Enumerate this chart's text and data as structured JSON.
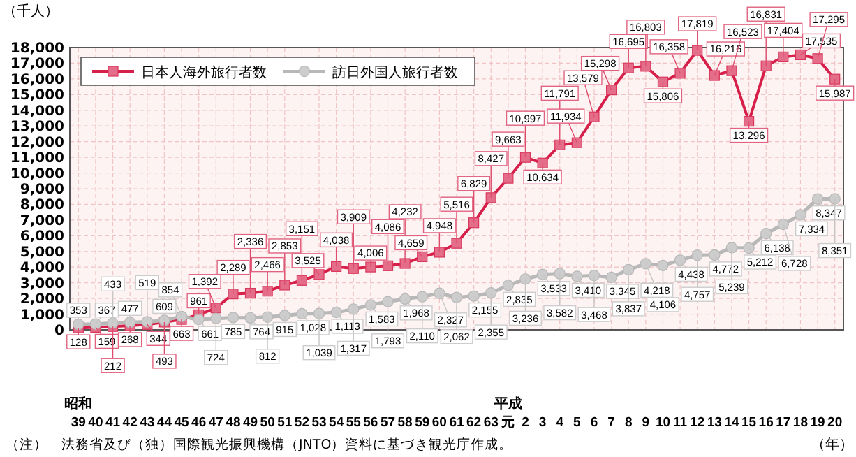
{
  "chart_data": {
    "type": "line",
    "ylabel": "（千人）",
    "xlabel": "（年）",
    "categories": [
      "39",
      "40",
      "41",
      "42",
      "43",
      "44",
      "45",
      "46",
      "47",
      "48",
      "49",
      "50",
      "51",
      "52",
      "53",
      "54",
      "55",
      "56",
      "57",
      "58",
      "59",
      "60",
      "61",
      "62",
      "63",
      "元",
      "2",
      "3",
      "4",
      "5",
      "6",
      "7",
      "8",
      "9",
      "10",
      "11",
      "12",
      "13",
      "14",
      "15",
      "16",
      "17",
      "18",
      "19",
      "20"
    ],
    "series": [
      {
        "name": "日本人海外旅行者数",
        "color": "#d6204a",
        "marker": "square",
        "values": [
          128,
          159,
          212,
          268,
          344,
          493,
          663,
          961,
          1392,
          2289,
          2336,
          2466,
          2853,
          3151,
          3525,
          4038,
          3909,
          4006,
          4086,
          4232,
          4659,
          4948,
          5516,
          6829,
          8427,
          9663,
          10997,
          10634,
          11791,
          11934,
          13579,
          15298,
          16695,
          16803,
          15806,
          16358,
          17819,
          16216,
          16523,
          13296,
          16831,
          17404,
          17535,
          17295,
          15987
        ],
        "value_labels": [
          "128",
          "159",
          "212",
          "268",
          "344",
          "493",
          "663",
          "961",
          "1,392",
          "2,289",
          "2,336",
          "2,466",
          "2,853",
          "3,151",
          "3,525",
          "4,038",
          "3,909",
          "4,006",
          "4,086",
          "4,232",
          "4,659",
          "4,948",
          "5,516",
          "6,829",
          "8,427",
          "9,663",
          "10,997",
          "10,634",
          "11,791",
          "11,934",
          "13,579",
          "15,298",
          "16,695",
          "16,803",
          "15,806",
          "16,358",
          "17,819",
          "16,216",
          "16,523",
          "13,296",
          "16,831",
          "17,404",
          "17,535",
          "17,295",
          "15,987"
        ]
      },
      {
        "name": "訪日外国人旅行者数",
        "color": "#b8b8b8",
        "marker": "circle",
        "values": [
          353,
          367,
          433,
          477,
          519,
          609,
          854,
          661,
          724,
          785,
          764,
          812,
          915,
          1028,
          1039,
          1113,
          1317,
          1583,
          1793,
          1968,
          2110,
          2327,
          2062,
          2155,
          2355,
          2835,
          3236,
          3533,
          3582,
          3410,
          3468,
          3345,
          3837,
          4218,
          4106,
          4438,
          4757,
          4772,
          5239,
          5212,
          6138,
          6728,
          7334,
          8347,
          8351
        ],
        "value_labels": [
          "353",
          "367",
          "433",
          "477",
          "519",
          "609",
          "854",
          "661",
          "724",
          "785",
          "764",
          "812",
          "915",
          "1,028",
          "1,039",
          "1,113",
          "1,317",
          "1,583",
          "1,793",
          "1,968",
          "2,110",
          "2,327",
          "2,062",
          "2,155",
          "2,355",
          "2,835",
          "3,236",
          "3,533",
          "3,582",
          "3,410",
          "3,468",
          "3,345",
          "3,837",
          "4,218",
          "4,106",
          "4,438",
          "4,757",
          "4,772",
          "5,239",
          "5,212",
          "6,138",
          "6,728",
          "7,334",
          "8,347",
          "8,351"
        ]
      }
    ],
    "ylim": [
      0,
      18000
    ],
    "yticks": [
      {
        "value": 0,
        "label": "0"
      },
      {
        "value": 1000,
        "label": "1,000"
      },
      {
        "value": 2000,
        "label": "2,000"
      },
      {
        "value": 3000,
        "label": "3,000"
      },
      {
        "value": 4000,
        "label": "4,000"
      },
      {
        "value": 5000,
        "label": "5,000"
      },
      {
        "value": 6000,
        "label": "6,000"
      },
      {
        "value": 7000,
        "label": "7,000"
      },
      {
        "value": 8000,
        "label": "8,000"
      },
      {
        "value": 9000,
        "label": "9,000"
      },
      {
        "value": 10000,
        "label": "10,000"
      },
      {
        "value": 11000,
        "label": "11,000"
      },
      {
        "value": 12000,
        "label": "12,000"
      },
      {
        "value": 13000,
        "label": "13,000"
      },
      {
        "value": 14000,
        "label": "14,000"
      },
      {
        "value": 15000,
        "label": "15,000"
      },
      {
        "value": 16000,
        "label": "16,000"
      },
      {
        "value": 17000,
        "label": "17,000"
      },
      {
        "value": 18000,
        "label": "18,000"
      }
    ],
    "grid": true,
    "legend": "top left",
    "annotations": [
      "昭和",
      "平成",
      "（注）　法務省及び（独）国際観光振興機構（JNTO）資料に基づき観光庁作成。"
    ]
  }
}
